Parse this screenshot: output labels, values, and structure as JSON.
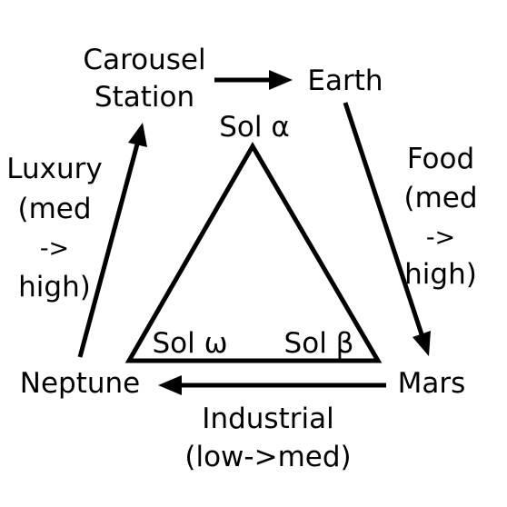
{
  "nodes": {
    "carousel_line1": "Carousel",
    "carousel_line2": "Station",
    "earth": "Earth",
    "mars": "Mars",
    "neptune": "Neptune"
  },
  "edges": {
    "food": {
      "line1": "Food",
      "line2": "(med",
      "line3": "->",
      "line4": "high)"
    },
    "industrial": {
      "line1": "Industrial",
      "line2": "(low->med)"
    },
    "luxury": {
      "line1": "Luxury",
      "line2": "(med",
      "line3": "->",
      "line4": "high)"
    }
  },
  "triangle": {
    "top": "Sol α",
    "left": "Sol ω",
    "right": "Sol β"
  },
  "colors": {
    "stroke": "#000000",
    "background": "#ffffff"
  }
}
